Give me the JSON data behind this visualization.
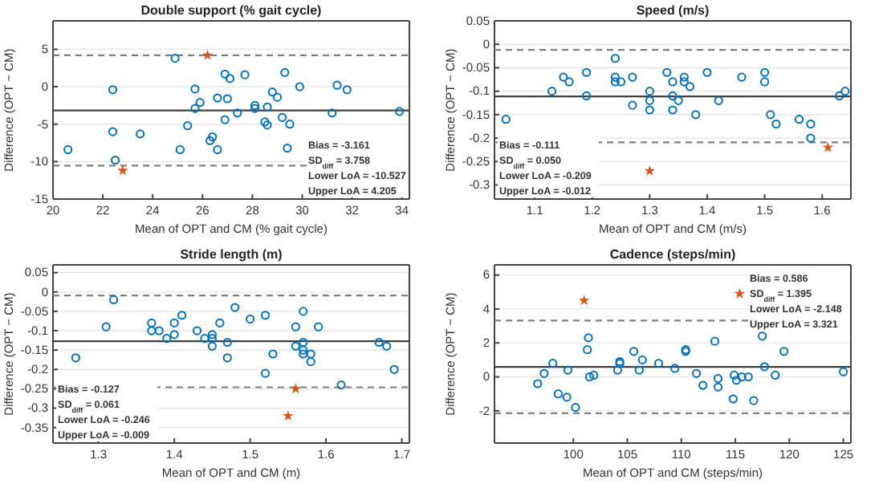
{
  "chart_data": [
    {
      "type": "scatter",
      "title": "Double support (% gait cycle)",
      "xlabel": "Mean of OPT and CM (% gait cycle)",
      "ylabel": "Difference (OPT − CM)",
      "xlim": [
        20,
        34.3
      ],
      "xticks": [
        20,
        22,
        24,
        26,
        28,
        30,
        32,
        34
      ],
      "ylim": [
        -15,
        8.8
      ],
      "yticks": [
        -15,
        -10,
        -5,
        0,
        5
      ],
      "grid": "y",
      "series": [
        {
          "color": "#0072bd",
          "marker": "circle",
          "x": [
            20.6,
            22.4,
            22.4,
            22.5,
            23.5,
            24.9,
            25.1,
            25.4,
            25.7,
            25.7,
            25.9,
            26.3,
            26.4,
            26.6,
            26.6,
            26.9,
            26.9,
            27,
            27.1,
            27.4,
            27.7,
            28.1,
            28.1,
            28.5,
            28.6,
            28.6,
            28.8,
            29,
            29.2,
            29.3,
            29.4,
            29.5,
            29.9,
            31.2,
            31.4,
            31.8,
            33.9
          ],
          "values": [
            -8.4,
            -0.4,
            -6,
            -9.8,
            -6.3,
            3.8,
            -8.4,
            -5.2,
            -0.3,
            -2.9,
            -2.1,
            -7.2,
            -6.7,
            -1.5,
            -8.4,
            1.7,
            -4.4,
            -1.6,
            1.1,
            -3.5,
            1.6,
            -2.5,
            -2.9,
            -4.7,
            -5.1,
            -2.7,
            -0.7,
            -1.4,
            -4.1,
            1.9,
            -8.2,
            -5,
            0,
            -3.5,
            0.2,
            -0.4,
            -3.3
          ]
        },
        {
          "color": "#d95319",
          "marker": "star",
          "x": [
            26.2,
            22.8
          ],
          "values": [
            4.2,
            -11.2
          ]
        }
      ],
      "ref_lines": [
        {
          "axis": "y",
          "value": -3.161,
          "line_style": "solid",
          "color": "#404040"
        },
        {
          "axis": "y",
          "value": -10.527,
          "line_style": "dashed",
          "color": "#808080"
        },
        {
          "axis": "y",
          "value": 4.205,
          "line_style": "dashed",
          "color": "#808080"
        }
      ],
      "annotations": [
        "Bias = -3.161",
        "SD$_{diff}$ = 3.758",
        "Lower LoA = -10.527",
        "Upper LoA = 4.205"
      ]
    },
    {
      "type": "scatter",
      "title": "Speed (m/s)",
      "xlabel": "Mean of OPT and CM (m/s)",
      "ylabel": "Difference (OPT − CM)",
      "xlim": [
        1.03,
        1.65
      ],
      "xticks": [
        1.1,
        1.2,
        1.3,
        1.4,
        1.5,
        1.6
      ],
      "ylim": [
        -0.33,
        0.05
      ],
      "yticks": [
        -0.3,
        -0.25,
        -0.2,
        -0.15,
        -0.1,
        -0.05,
        0,
        0.05
      ],
      "grid": "y",
      "series": [
        {
          "color": "#0072bd",
          "marker": "circle",
          "x": [
            1.05,
            1.13,
            1.15,
            1.16,
            1.19,
            1.19,
            1.24,
            1.24,
            1.24,
            1.25,
            1.27,
            1.27,
            1.3,
            1.3,
            1.3,
            1.33,
            1.34,
            1.34,
            1.34,
            1.35,
            1.36,
            1.36,
            1.37,
            1.38,
            1.4,
            1.42,
            1.46,
            1.5,
            1.5,
            1.51,
            1.52,
            1.56,
            1.58,
            1.58,
            1.63,
            1.64
          ],
          "values": [
            -0.16,
            -0.1,
            -0.07,
            -0.08,
            -0.06,
            -0.11,
            -0.03,
            -0.07,
            -0.08,
            -0.08,
            -0.07,
            -0.13,
            -0.1,
            -0.12,
            -0.14,
            -0.06,
            -0.08,
            -0.11,
            -0.14,
            -0.12,
            -0.07,
            -0.08,
            -0.09,
            -0.15,
            -0.06,
            -0.12,
            -0.07,
            -0.06,
            -0.08,
            -0.15,
            -0.17,
            -0.16,
            -0.17,
            -0.2,
            -0.11,
            -0.1
          ]
        },
        {
          "color": "#d95319",
          "marker": "star",
          "x": [
            1.3,
            1.61
          ],
          "values": [
            -0.27,
            -0.22
          ]
        }
      ],
      "ref_lines": [
        {
          "axis": "y",
          "value": -0.111,
          "line_style": "solid",
          "color": "#404040"
        },
        {
          "axis": "y",
          "value": -0.209,
          "line_style": "dashed",
          "color": "#808080"
        },
        {
          "axis": "y",
          "value": -0.012,
          "line_style": "dashed",
          "color": "#808080"
        }
      ],
      "annotations": [
        "Bias = -0.111",
        "SD$_{diff}$ = 0.050",
        "Lower LoA = -0.209",
        "Upper LoA = -0.012"
      ]
    },
    {
      "type": "scatter",
      "title": "Stride length (m)",
      "xlabel": "Mean of OPT and CM (m)",
      "ylabel": "Difference (OPT − CM)",
      "xlim": [
        1.24,
        1.71
      ],
      "xticks": [
        1.3,
        1.4,
        1.5,
        1.6,
        1.7
      ],
      "ylim": [
        -0.39,
        0.07
      ],
      "yticks": [
        -0.35,
        -0.3,
        -0.25,
        -0.2,
        -0.15,
        -0.1,
        -0.05,
        0,
        0.05
      ],
      "grid": "y",
      "series": [
        {
          "color": "#0072bd",
          "marker": "circle",
          "x": [
            1.27,
            1.31,
            1.32,
            1.37,
            1.37,
            1.38,
            1.39,
            1.4,
            1.4,
            1.41,
            1.43,
            1.44,
            1.45,
            1.45,
            1.45,
            1.46,
            1.47,
            1.47,
            1.48,
            1.5,
            1.52,
            1.52,
            1.53,
            1.56,
            1.56,
            1.57,
            1.57,
            1.57,
            1.57,
            1.58,
            1.58,
            1.59,
            1.62,
            1.67,
            1.68,
            1.69
          ],
          "values": [
            -0.17,
            -0.09,
            -0.02,
            -0.08,
            -0.1,
            -0.1,
            -0.12,
            -0.08,
            -0.11,
            -0.06,
            -0.1,
            -0.12,
            -0.11,
            -0.12,
            -0.14,
            -0.08,
            -0.13,
            -0.17,
            -0.04,
            -0.07,
            -0.06,
            -0.21,
            -0.16,
            -0.09,
            -0.14,
            -0.05,
            -0.13,
            -0.15,
            -0.16,
            -0.16,
            -0.18,
            -0.09,
            -0.24,
            -0.13,
            -0.14,
            -0.2
          ]
        },
        {
          "color": "#d95319",
          "marker": "star",
          "x": [
            1.56,
            1.55
          ],
          "values": [
            -0.25,
            -0.32
          ]
        }
      ],
      "ref_lines": [
        {
          "axis": "y",
          "value": -0.127,
          "line_style": "solid",
          "color": "#404040"
        },
        {
          "axis": "y",
          "value": -0.246,
          "line_style": "dashed",
          "color": "#808080"
        },
        {
          "axis": "y",
          "value": -0.009,
          "line_style": "dashed",
          "color": "#808080"
        }
      ],
      "annotations": [
        "Bias = -0.127",
        "SD$_{diff}$ = 0.061",
        "Lower LoA = -0.246",
        "Upper LoA = -0.009"
      ]
    },
    {
      "type": "scatter",
      "title": "Cadence (steps/min)",
      "xlabel": "Mean of OPT and CM (steps/min)",
      "ylabel": "Difference (OPT − CM)",
      "xlim": [
        92.7,
        125.7
      ],
      "xticks": [
        100,
        105,
        110,
        115,
        120,
        125
      ],
      "ylim": [
        -3.9,
        6.6
      ],
      "yticks": [
        -2,
        0,
        2,
        4,
        6
      ],
      "grid": "y",
      "series": [
        {
          "color": "#0072bd",
          "marker": "circle",
          "x": [
            96.7,
            97.3,
            98.1,
            98.6,
            99.4,
            99.5,
            100.2,
            101.3,
            101.4,
            101.5,
            101.9,
            104.1,
            104.3,
            104.3,
            105.6,
            106.1,
            106.4,
            107.9,
            109.4,
            110.4,
            110.4,
            111.4,
            112,
            113.1,
            113.4,
            113.4,
            114.8,
            114.9,
            115.1,
            115.6,
            116.2,
            116.7,
            117.5,
            117.7,
            118.7,
            119.5,
            125
          ],
          "values": [
            -0.4,
            0.2,
            0.8,
            -1,
            -1.2,
            0.4,
            -1.8,
            1.6,
            2.3,
            0,
            0.1,
            0.4,
            0.9,
            0.8,
            1.5,
            0.4,
            1,
            0.8,
            0.5,
            1.6,
            1.5,
            0.2,
            -0.5,
            2.1,
            -0.1,
            -0.6,
            -1.3,
            0.1,
            -0.2,
            0,
            0,
            -1.4,
            2.4,
            0.6,
            0.1,
            1.5,
            0.3
          ]
        },
        {
          "color": "#d95319",
          "marker": "star",
          "x": [
            101,
            115.4
          ],
          "values": [
            4.5,
            4.9
          ]
        }
      ],
      "ref_lines": [
        {
          "axis": "y",
          "value": 0.586,
          "line_style": "solid",
          "color": "#404040"
        },
        {
          "axis": "y",
          "value": -2.148,
          "line_style": "dashed",
          "color": "#808080"
        },
        {
          "axis": "y",
          "value": 3.321,
          "line_style": "dashed",
          "color": "#808080"
        }
      ],
      "annotations": [
        "Bias = 0.586",
        "SD$_{diff}$ = 1.395",
        "Lower LoA = -2.148",
        "Upper LoA = 3.321"
      ]
    }
  ]
}
